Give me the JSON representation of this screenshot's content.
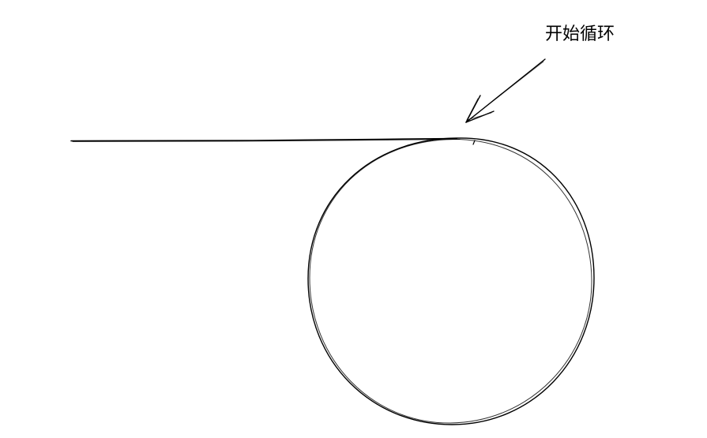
{
  "diagram": {
    "annotation_text": "开始循环",
    "stroke_color": "#000000",
    "background_color": "#ffffff"
  }
}
